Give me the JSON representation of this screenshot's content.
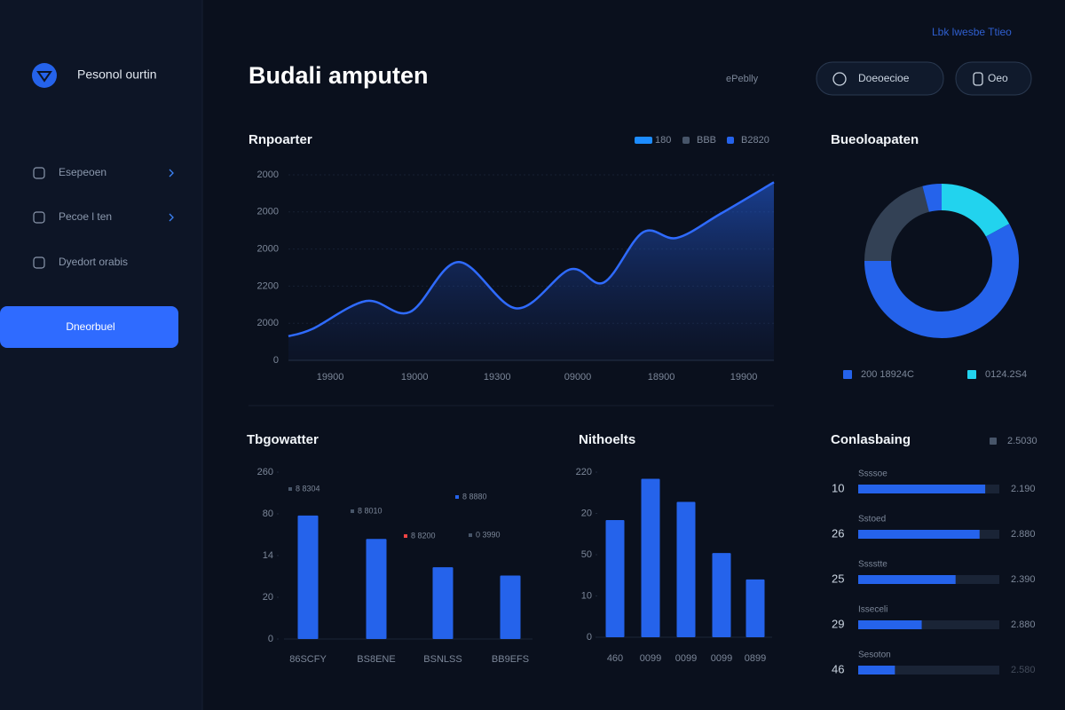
{
  "header": {
    "title": "Budali amputen",
    "meta": "ePeblly",
    "top_link": "Lbk lwesbe Ttieo",
    "buttons": [
      "Doeoecioe",
      "Oeo"
    ]
  },
  "sidebar": {
    "brand": "Pesonol ourtin",
    "nav": [
      {
        "label": "Esepeoen",
        "active": false
      },
      {
        "label": "Pecoe l ten",
        "active": false
      },
      {
        "label": "Dyedort orabis",
        "active": false
      },
      {
        "label": "Dneorbuel",
        "active": true
      }
    ]
  },
  "chart_data": [
    {
      "type": "area",
      "title": "Rnpoarter",
      "color": "#2f6bff",
      "legend": [
        {
          "name": "180",
          "color": "#1d8cff"
        },
        {
          "name": "BBB",
          "color": "#475569"
        },
        {
          "name": "B2820",
          "color": "#2563eb"
        }
      ],
      "x": [
        0,
        5,
        16,
        25,
        35,
        47,
        58,
        65,
        73,
        80,
        89,
        100
      ],
      "values": [
        13,
        17,
        32,
        26,
        53,
        28,
        49,
        42,
        69,
        66,
        79,
        96
      ],
      "xlim": [
        0,
        100
      ],
      "ylim": [
        0,
        100
      ],
      "yticks": [
        {
          "value": 100,
          "label": "2000"
        },
        {
          "value": 80,
          "label": "2000"
        },
        {
          "value": 60,
          "label": "2000"
        },
        {
          "value": 40,
          "label": "2200"
        },
        {
          "value": 20,
          "label": "2000"
        },
        0
      ],
      "xticks": [
        {
          "value": 8.6,
          "label": "19900"
        },
        {
          "value": 26,
          "label": "19000"
        },
        {
          "value": 43,
          "label": "19300"
        },
        {
          "value": 59.6,
          "label": "09000"
        },
        {
          "value": 76.8,
          "label": "18900"
        },
        {
          "value": 93.8,
          "label": "19900"
        }
      ]
    },
    {
      "type": "donut",
      "title": "Bueoloapaten",
      "values": [
        17,
        58,
        21,
        4
      ],
      "colors": [
        "#22d3ee",
        "#2563eb",
        "#334155",
        "#2563eb"
      ],
      "legend": [
        {
          "name": "200 18924C",
          "color": "#2563eb"
        },
        {
          "name": "0124.2S4",
          "color": "#22d3ee"
        }
      ]
    },
    {
      "type": "bar",
      "title": "Tbgowatter",
      "color": "#2563eb",
      "categories": [
        "86SCFY",
        "BS8ENE",
        "BSNLSS",
        "BB9EFS"
      ],
      "values": [
        74,
        60,
        43,
        38
      ],
      "ylim": [
        0,
        100
      ],
      "yticks": [
        {
          "value": 100,
          "label": "260"
        },
        {
          "value": 75,
          "label": "80"
        },
        {
          "value": 50,
          "label": "14"
        },
        {
          "value": 25,
          "label": "20"
        },
        0
      ],
      "annotations": [
        {
          "text": "8 8304",
          "color": "#475569"
        },
        {
          "text": "8 8010",
          "color": "#475569"
        },
        {
          "text": "8 8200",
          "color": "#ef4444"
        },
        {
          "text": "8 8880",
          "color": "#2563eb"
        },
        {
          "text": "0 3990",
          "color": "#475569"
        }
      ]
    },
    {
      "type": "bar",
      "title": "Nithoelts",
      "color": "#2563eb",
      "categories": [
        "460",
        "0099",
        "0099",
        "0099",
        "0899"
      ],
      "values": [
        71,
        96,
        82,
        51,
        35
      ],
      "ylim": [
        0,
        100
      ],
      "yticks": [
        {
          "value": 100,
          "label": "220"
        },
        {
          "value": 75,
          "label": "20"
        },
        {
          "value": 50,
          "label": "50"
        },
        {
          "value": 25,
          "label": "10"
        },
        0
      ]
    },
    {
      "type": "progress",
      "title": "Conlasbaing",
      "legend": {
        "name": "2.5030",
        "color": "#475569"
      },
      "color": "#2563eb",
      "ranks": [
        "10",
        "26",
        "25",
        "29",
        "46"
      ],
      "labels": [
        "Ssssoe",
        "Sstoed",
        "Sssstte",
        "Isseceli",
        "Sesoton"
      ],
      "values": [
        90,
        86,
        69,
        45,
        26
      ],
      "ylim": [
        0,
        100
      ],
      "notes": [
        "2.190",
        "2.880",
        "2.390",
        "2.880",
        "2.580"
      ]
    }
  ]
}
